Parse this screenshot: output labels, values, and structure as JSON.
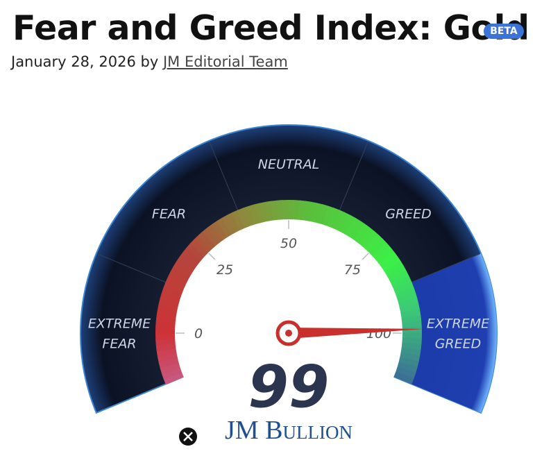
{
  "header": {
    "title": "Fear and Greed Index: Gold",
    "badge": "BETA",
    "date": "January 28, 2026",
    "by": "by",
    "author": "JM Editorial Team"
  },
  "gauge": {
    "value": 99,
    "ticks": [
      0,
      25,
      50,
      75,
      100
    ],
    "zones": [
      [
        "EXTREME",
        "FEAR"
      ],
      [
        "FEAR"
      ],
      [
        "NEUTRAL"
      ],
      [
        "GREED"
      ],
      [
        "EXTREME",
        "GREED"
      ]
    ],
    "brand": "JM Bullion"
  }
}
